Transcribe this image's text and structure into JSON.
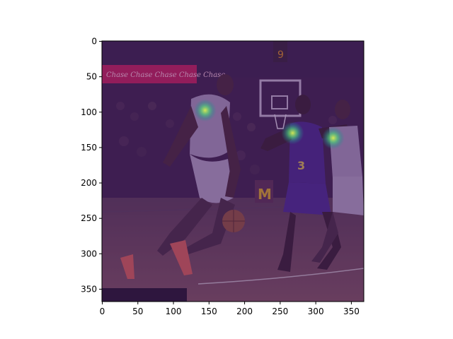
{
  "figure": {
    "image_description": "Basketball players on court with heatmap overlay",
    "arena_banner_text": "Chase Chase Chase Chase Chase",
    "scoreboard_text": "9",
    "jersey_number": "3",
    "colormap": "viridis"
  },
  "axes": {
    "x_ticks": [
      "0",
      "50",
      "100",
      "150",
      "200",
      "250",
      "300",
      "350"
    ],
    "y_ticks": [
      "0",
      "50",
      "100",
      "150",
      "200",
      "250",
      "300",
      "350"
    ],
    "xlim": [
      0,
      368
    ],
    "ylim": [
      368,
      0
    ]
  },
  "keypoints": [
    {
      "label": "hotspot-1",
      "x": 145,
      "y": 98
    },
    {
      "label": "hotspot-2",
      "x": 268,
      "y": 130
    },
    {
      "label": "hotspot-3",
      "x": 325,
      "y": 137
    }
  ],
  "colors": {
    "overlay": "#3b0f55",
    "court": "#7a4a58",
    "hotspot_core": "#c8e64a",
    "hotspot_ring": "#2fb39a"
  }
}
